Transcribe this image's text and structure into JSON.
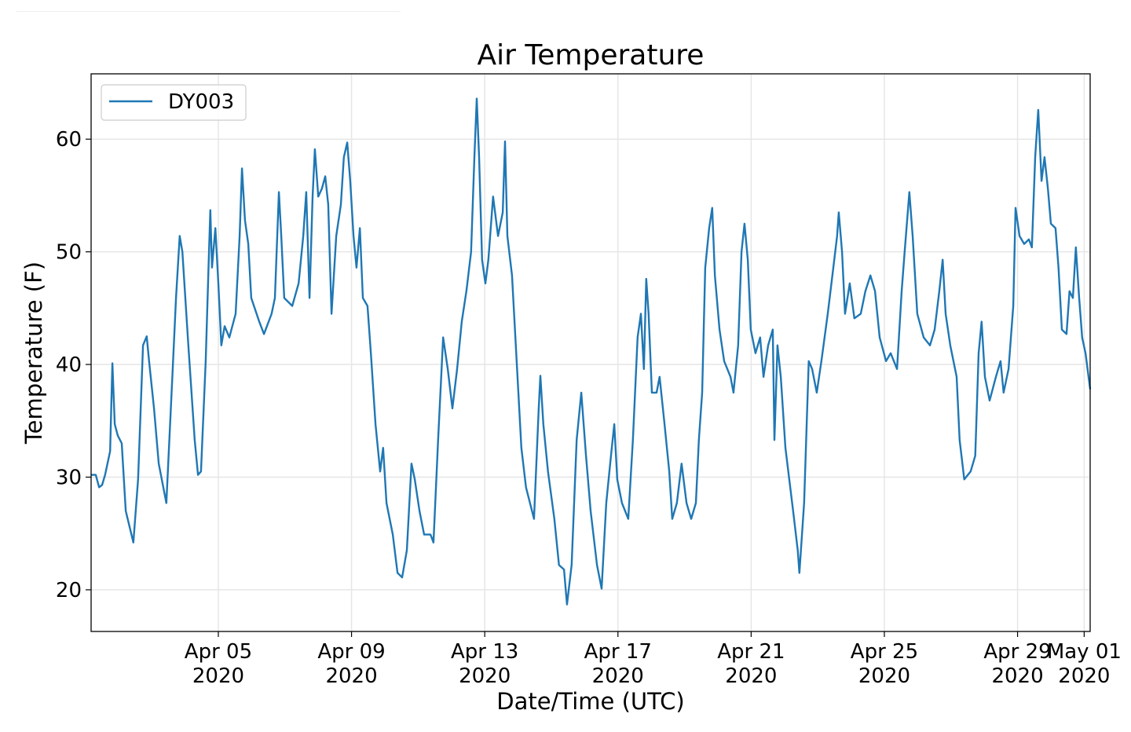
{
  "chart_data": {
    "type": "line",
    "title": "Air Temperature",
    "xlabel": "Date/Time (UTC)",
    "ylabel": "Temperature (F)",
    "grid": true,
    "legend_placement": "top-left",
    "xlim": [
      0.18,
      30.18
    ],
    "ylim": [
      16.3,
      65.8
    ],
    "yticks": [
      20,
      30,
      40,
      50,
      60
    ],
    "xticks": [
      {
        "x_days_from_apr01": 4,
        "label": [
          "Apr 05",
          "2020"
        ]
      },
      {
        "x_days_from_apr01": 8,
        "label": [
          "Apr 09",
          "2020"
        ]
      },
      {
        "x_days_from_apr01": 12,
        "label": [
          "Apr 13",
          "2020"
        ]
      },
      {
        "x_days_from_apr01": 16,
        "label": [
          "Apr 17",
          "2020"
        ]
      },
      {
        "x_days_from_apr01": 20,
        "label": [
          "Apr 21",
          "2020"
        ]
      },
      {
        "x_days_from_apr01": 24,
        "label": [
          "Apr 25",
          "2020"
        ]
      },
      {
        "x_days_from_apr01": 28,
        "label": [
          "Apr 29",
          "2020"
        ]
      },
      {
        "x_days_from_apr01": 30,
        "label": [
          "May 01",
          "2020"
        ]
      }
    ],
    "series": [
      {
        "name": "DY003",
        "color": "#1f77b4",
        "x_days_from_apr01": [
          0.18,
          0.32,
          0.42,
          0.51,
          0.6,
          0.75,
          0.82,
          0.89,
          0.98,
          1.1,
          1.22,
          1.45,
          1.59,
          1.74,
          1.85,
          1.92,
          2.07,
          2.21,
          2.44,
          2.63,
          2.73,
          2.84,
          2.92,
          3.1,
          3.29,
          3.39,
          3.48,
          3.62,
          3.72,
          3.76,
          3.81,
          3.91,
          4.0,
          4.09,
          4.19,
          4.33,
          4.52,
          4.64,
          4.71,
          4.8,
          4.9,
          4.99,
          5.23,
          5.37,
          5.6,
          5.7,
          5.82,
          5.89,
          5.98,
          6.22,
          6.41,
          6.55,
          6.64,
          6.74,
          6.83,
          6.9,
          7.0,
          7.11,
          7.21,
          7.3,
          7.4,
          7.54,
          7.68,
          7.77,
          7.87,
          7.96,
          8.06,
          8.15,
          8.25,
          8.34,
          8.48,
          8.58,
          8.72,
          8.86,
          8.95,
          9.05,
          9.24,
          9.38,
          9.52,
          9.66,
          9.8,
          9.9,
          10.04,
          10.18,
          10.37,
          10.46,
          10.6,
          10.75,
          10.89,
          11.03,
          11.17,
          11.31,
          11.45,
          11.59,
          11.69,
          11.76,
          11.83,
          11.92,
          12.02,
          12.11,
          12.25,
          12.4,
          12.54,
          12.61,
          12.68,
          12.82,
          13.01,
          13.1,
          13.24,
          13.48,
          13.62,
          13.67,
          13.76,
          13.9,
          14.09,
          14.23,
          14.38,
          14.47,
          14.61,
          14.76,
          14.9,
          15.04,
          15.18,
          15.37,
          15.51,
          15.65,
          15.79,
          15.89,
          15.98,
          16.12,
          16.31,
          16.45,
          16.59,
          16.69,
          16.78,
          16.85,
          16.92,
          17.02,
          17.16,
          17.25,
          17.4,
          17.54,
          17.63,
          17.77,
          17.91,
          18.06,
          18.2,
          18.34,
          18.43,
          18.53,
          18.62,
          18.74,
          18.83,
          18.91,
          19.05,
          19.19,
          19.38,
          19.47,
          19.61,
          19.71,
          19.8,
          19.9,
          19.99,
          20.13,
          20.27,
          20.37,
          20.51,
          20.65,
          20.7,
          20.79,
          20.89,
          21.03,
          21.26,
          21.4,
          21.45,
          21.59,
          21.73,
          21.83,
          21.97,
          22.11,
          22.3,
          22.44,
          22.58,
          22.63,
          22.73,
          22.82,
          22.96,
          23.1,
          23.29,
          23.43,
          23.58,
          23.72,
          23.86,
          24.05,
          24.19,
          24.38,
          24.52,
          24.61,
          24.75,
          24.85,
          24.99,
          25.18,
          25.37,
          25.51,
          25.65,
          25.75,
          25.84,
          25.98,
          26.17,
          26.26,
          26.4,
          26.59,
          26.73,
          26.83,
          26.92,
          27.02,
          27.16,
          27.35,
          27.49,
          27.58,
          27.73,
          27.87,
          27.94,
          28.06,
          28.2,
          28.34,
          28.43,
          28.53,
          28.62,
          28.72,
          28.81,
          28.91,
          29.0,
          29.14,
          29.23,
          29.33,
          29.47,
          29.56,
          29.66,
          29.75,
          29.85,
          29.94,
          30.04,
          30.18
        ],
        "values": [
          30.2,
          30.2,
          29.1,
          29.3,
          30.2,
          32.3,
          40.1,
          34.7,
          33.7,
          33.0,
          27.0,
          24.2,
          29.8,
          41.7,
          42.5,
          40.3,
          36.1,
          31.2,
          27.7,
          39.6,
          45.9,
          51.4,
          50.0,
          41.7,
          33.3,
          30.2,
          30.5,
          40.3,
          50.0,
          53.7,
          48.6,
          52.1,
          47.2,
          41.7,
          43.4,
          42.4,
          44.5,
          51.4,
          57.4,
          52.8,
          50.7,
          45.9,
          43.8,
          42.7,
          44.5,
          45.9,
          55.3,
          51.4,
          45.9,
          45.2,
          47.2,
          51.4,
          55.3,
          45.9,
          54.9,
          59.1,
          54.9,
          55.6,
          56.7,
          54.2,
          44.5,
          51.4,
          54.2,
          58.4,
          59.7,
          56.3,
          51.4,
          48.6,
          52.1,
          45.9,
          45.2,
          41.0,
          34.7,
          30.5,
          32.6,
          27.7,
          24.9,
          21.5,
          21.1,
          23.5,
          31.2,
          29.8,
          27.0,
          24.9,
          24.9,
          24.2,
          33.3,
          42.4,
          39.6,
          36.1,
          39.6,
          43.8,
          46.5,
          50.0,
          58.4,
          63.6,
          58.4,
          49.3,
          47.2,
          49.3,
          54.9,
          51.4,
          53.5,
          59.8,
          51.4,
          47.9,
          37.5,
          32.6,
          29.1,
          26.3,
          36.1,
          39.0,
          34.7,
          30.5,
          26.3,
          22.2,
          21.8,
          18.7,
          22.2,
          33.3,
          37.5,
          31.9,
          27.0,
          22.2,
          20.1,
          27.7,
          31.9,
          34.7,
          29.8,
          27.7,
          26.3,
          33.3,
          42.4,
          44.5,
          39.6,
          47.6,
          44.5,
          37.5,
          37.5,
          38.9,
          34.7,
          30.5,
          26.3,
          27.7,
          31.2,
          27.7,
          26.3,
          27.7,
          33.3,
          37.5,
          48.6,
          52.1,
          53.9,
          47.9,
          43.1,
          40.3,
          38.9,
          37.5,
          41.7,
          50.0,
          52.5,
          49.3,
          43.1,
          41.0,
          42.4,
          38.9,
          41.7,
          43.1,
          33.3,
          41.7,
          38.9,
          32.6,
          27.0,
          23.5,
          21.5,
          27.7,
          40.3,
          39.6,
          37.5,
          40.3,
          44.5,
          47.9,
          51.4,
          53.5,
          50.0,
          44.5,
          47.2,
          44.1,
          44.5,
          46.5,
          47.9,
          46.5,
          42.4,
          40.3,
          41.0,
          39.6,
          46.5,
          50.0,
          55.3,
          51.4,
          44.5,
          42.4,
          41.7,
          43.1,
          46.5,
          49.3,
          44.5,
          41.7,
          38.9,
          33.3,
          29.8,
          30.5,
          31.9,
          41.0,
          43.8,
          38.9,
          36.8,
          38.9,
          40.3,
          37.5,
          39.6,
          45.2,
          53.9,
          51.4,
          50.7,
          51.1,
          50.4,
          58.4,
          62.6,
          56.3,
          58.4,
          55.6,
          52.5,
          52.1,
          48.6,
          43.1,
          42.7,
          46.5,
          45.9,
          50.4,
          45.9,
          42.4,
          41.0,
          37.8
        ]
      }
    ]
  }
}
